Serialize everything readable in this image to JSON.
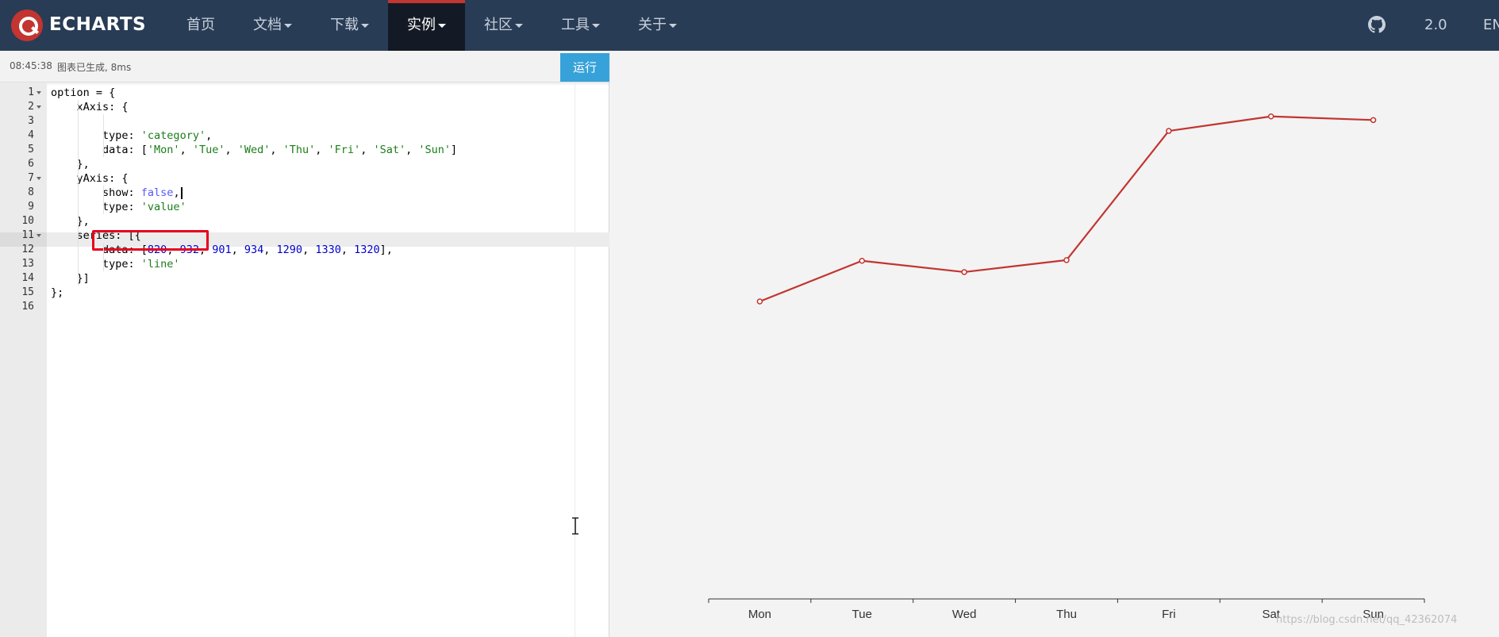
{
  "navbar": {
    "logo_text": "ECHARTS",
    "items": [
      {
        "label": "首页",
        "dropdown": false,
        "active": false
      },
      {
        "label": "文档",
        "dropdown": true,
        "active": false
      },
      {
        "label": "下载",
        "dropdown": true,
        "active": false
      },
      {
        "label": "实例",
        "dropdown": true,
        "active": true
      },
      {
        "label": "社区",
        "dropdown": true,
        "active": false
      },
      {
        "label": "工具",
        "dropdown": true,
        "active": false
      },
      {
        "label": "关于",
        "dropdown": true,
        "active": false
      }
    ],
    "github_icon": "github-icon",
    "version": "2.0",
    "language": "EN"
  },
  "status": {
    "time": "08:45:38",
    "message": "图表已生成, 8ms"
  },
  "editor": {
    "run_label": "运行",
    "active_line": 8,
    "line_numbers": [
      "1",
      "2",
      "3",
      "4",
      "5",
      "6",
      "7",
      "8",
      "9",
      "10",
      "11",
      "12",
      "13",
      "14",
      "15",
      "16"
    ],
    "foldable_lines": [
      1,
      2,
      7,
      11
    ],
    "lines": [
      [
        {
          "t": "option = {",
          "c": ""
        }
      ],
      [
        {
          "t": "    xAxis: {",
          "c": ""
        }
      ],
      [
        {
          "t": "",
          "c": ""
        }
      ],
      [
        {
          "t": "        type: ",
          "c": ""
        },
        {
          "t": "'category'",
          "c": "str"
        },
        {
          "t": ",",
          "c": ""
        }
      ],
      [
        {
          "t": "        data: [",
          "c": ""
        },
        {
          "t": "'Mon'",
          "c": "str"
        },
        {
          "t": ", ",
          "c": ""
        },
        {
          "t": "'Tue'",
          "c": "str"
        },
        {
          "t": ", ",
          "c": ""
        },
        {
          "t": "'Wed'",
          "c": "str"
        },
        {
          "t": ", ",
          "c": ""
        },
        {
          "t": "'Thu'",
          "c": "str"
        },
        {
          "t": ", ",
          "c": ""
        },
        {
          "t": "'Fri'",
          "c": "str"
        },
        {
          "t": ", ",
          "c": ""
        },
        {
          "t": "'Sat'",
          "c": "str"
        },
        {
          "t": ", ",
          "c": ""
        },
        {
          "t": "'Sun'",
          "c": "str"
        },
        {
          "t": "]",
          "c": ""
        }
      ],
      [
        {
          "t": "    },",
          "c": ""
        }
      ],
      [
        {
          "t": "    yAxis: {",
          "c": ""
        }
      ],
      [
        {
          "t": "        show: ",
          "c": ""
        },
        {
          "t": "false",
          "c": "bool"
        },
        {
          "t": ",",
          "c": ""
        }
      ],
      [
        {
          "t": "        type: ",
          "c": ""
        },
        {
          "t": "'value'",
          "c": "str"
        }
      ],
      [
        {
          "t": "    },",
          "c": ""
        }
      ],
      [
        {
          "t": "    series: [{",
          "c": ""
        }
      ],
      [
        {
          "t": "        data: [",
          "c": ""
        },
        {
          "t": "820",
          "c": "num"
        },
        {
          "t": ", ",
          "c": ""
        },
        {
          "t": "932",
          "c": "num"
        },
        {
          "t": ", ",
          "c": ""
        },
        {
          "t": "901",
          "c": "num"
        },
        {
          "t": ", ",
          "c": ""
        },
        {
          "t": "934",
          "c": "num"
        },
        {
          "t": ", ",
          "c": ""
        },
        {
          "t": "1290",
          "c": "num"
        },
        {
          "t": ", ",
          "c": ""
        },
        {
          "t": "1330",
          "c": "num"
        },
        {
          "t": ", ",
          "c": ""
        },
        {
          "t": "1320",
          "c": "num"
        },
        {
          "t": "],",
          "c": ""
        }
      ],
      [
        {
          "t": "        type: ",
          "c": ""
        },
        {
          "t": "'line'",
          "c": "str"
        }
      ],
      [
        {
          "t": "    }]",
          "c": ""
        }
      ],
      [
        {
          "t": "};",
          "c": ""
        }
      ],
      [
        {
          "t": "",
          "c": ""
        }
      ]
    ]
  },
  "chart_data": {
    "type": "line",
    "categories": [
      "Mon",
      "Tue",
      "Wed",
      "Thu",
      "Fri",
      "Sat",
      "Sun"
    ],
    "values": [
      820,
      932,
      901,
      934,
      1290,
      1330,
      1320
    ],
    "ylim": [
      0,
      1500
    ],
    "y_axis_visible": false,
    "grid": false,
    "line_color": "#c23531"
  },
  "watermark": "https://blog.csdn.net/qq_42362074",
  "colors": {
    "navbar": "#293c55",
    "accent": "#c23531",
    "run_button": "#37a2da",
    "highlight": "#e8001c"
  }
}
